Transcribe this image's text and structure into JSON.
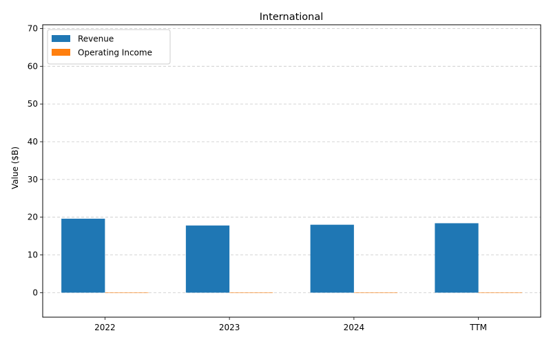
{
  "chart_data": {
    "type": "bar",
    "title": "International",
    "xlabel": "",
    "ylabel": "Value ($B)",
    "categories": [
      "2022",
      "2023",
      "2024",
      "TTM"
    ],
    "series": [
      {
        "name": "Revenue",
        "color": "#1f77b4",
        "values": [
          19.6,
          17.8,
          18.0,
          18.4
        ]
      },
      {
        "name": "Operating Income",
        "color": "#ff7f0e",
        "values": [
          0.0,
          0.0,
          0.0,
          -0.1
        ]
      }
    ],
    "ylim": [
      -6.5,
      71
    ],
    "yticks": [
      0,
      10,
      20,
      30,
      40,
      50,
      60,
      70
    ],
    "grid": "y-dashed",
    "legend": "top-left"
  }
}
